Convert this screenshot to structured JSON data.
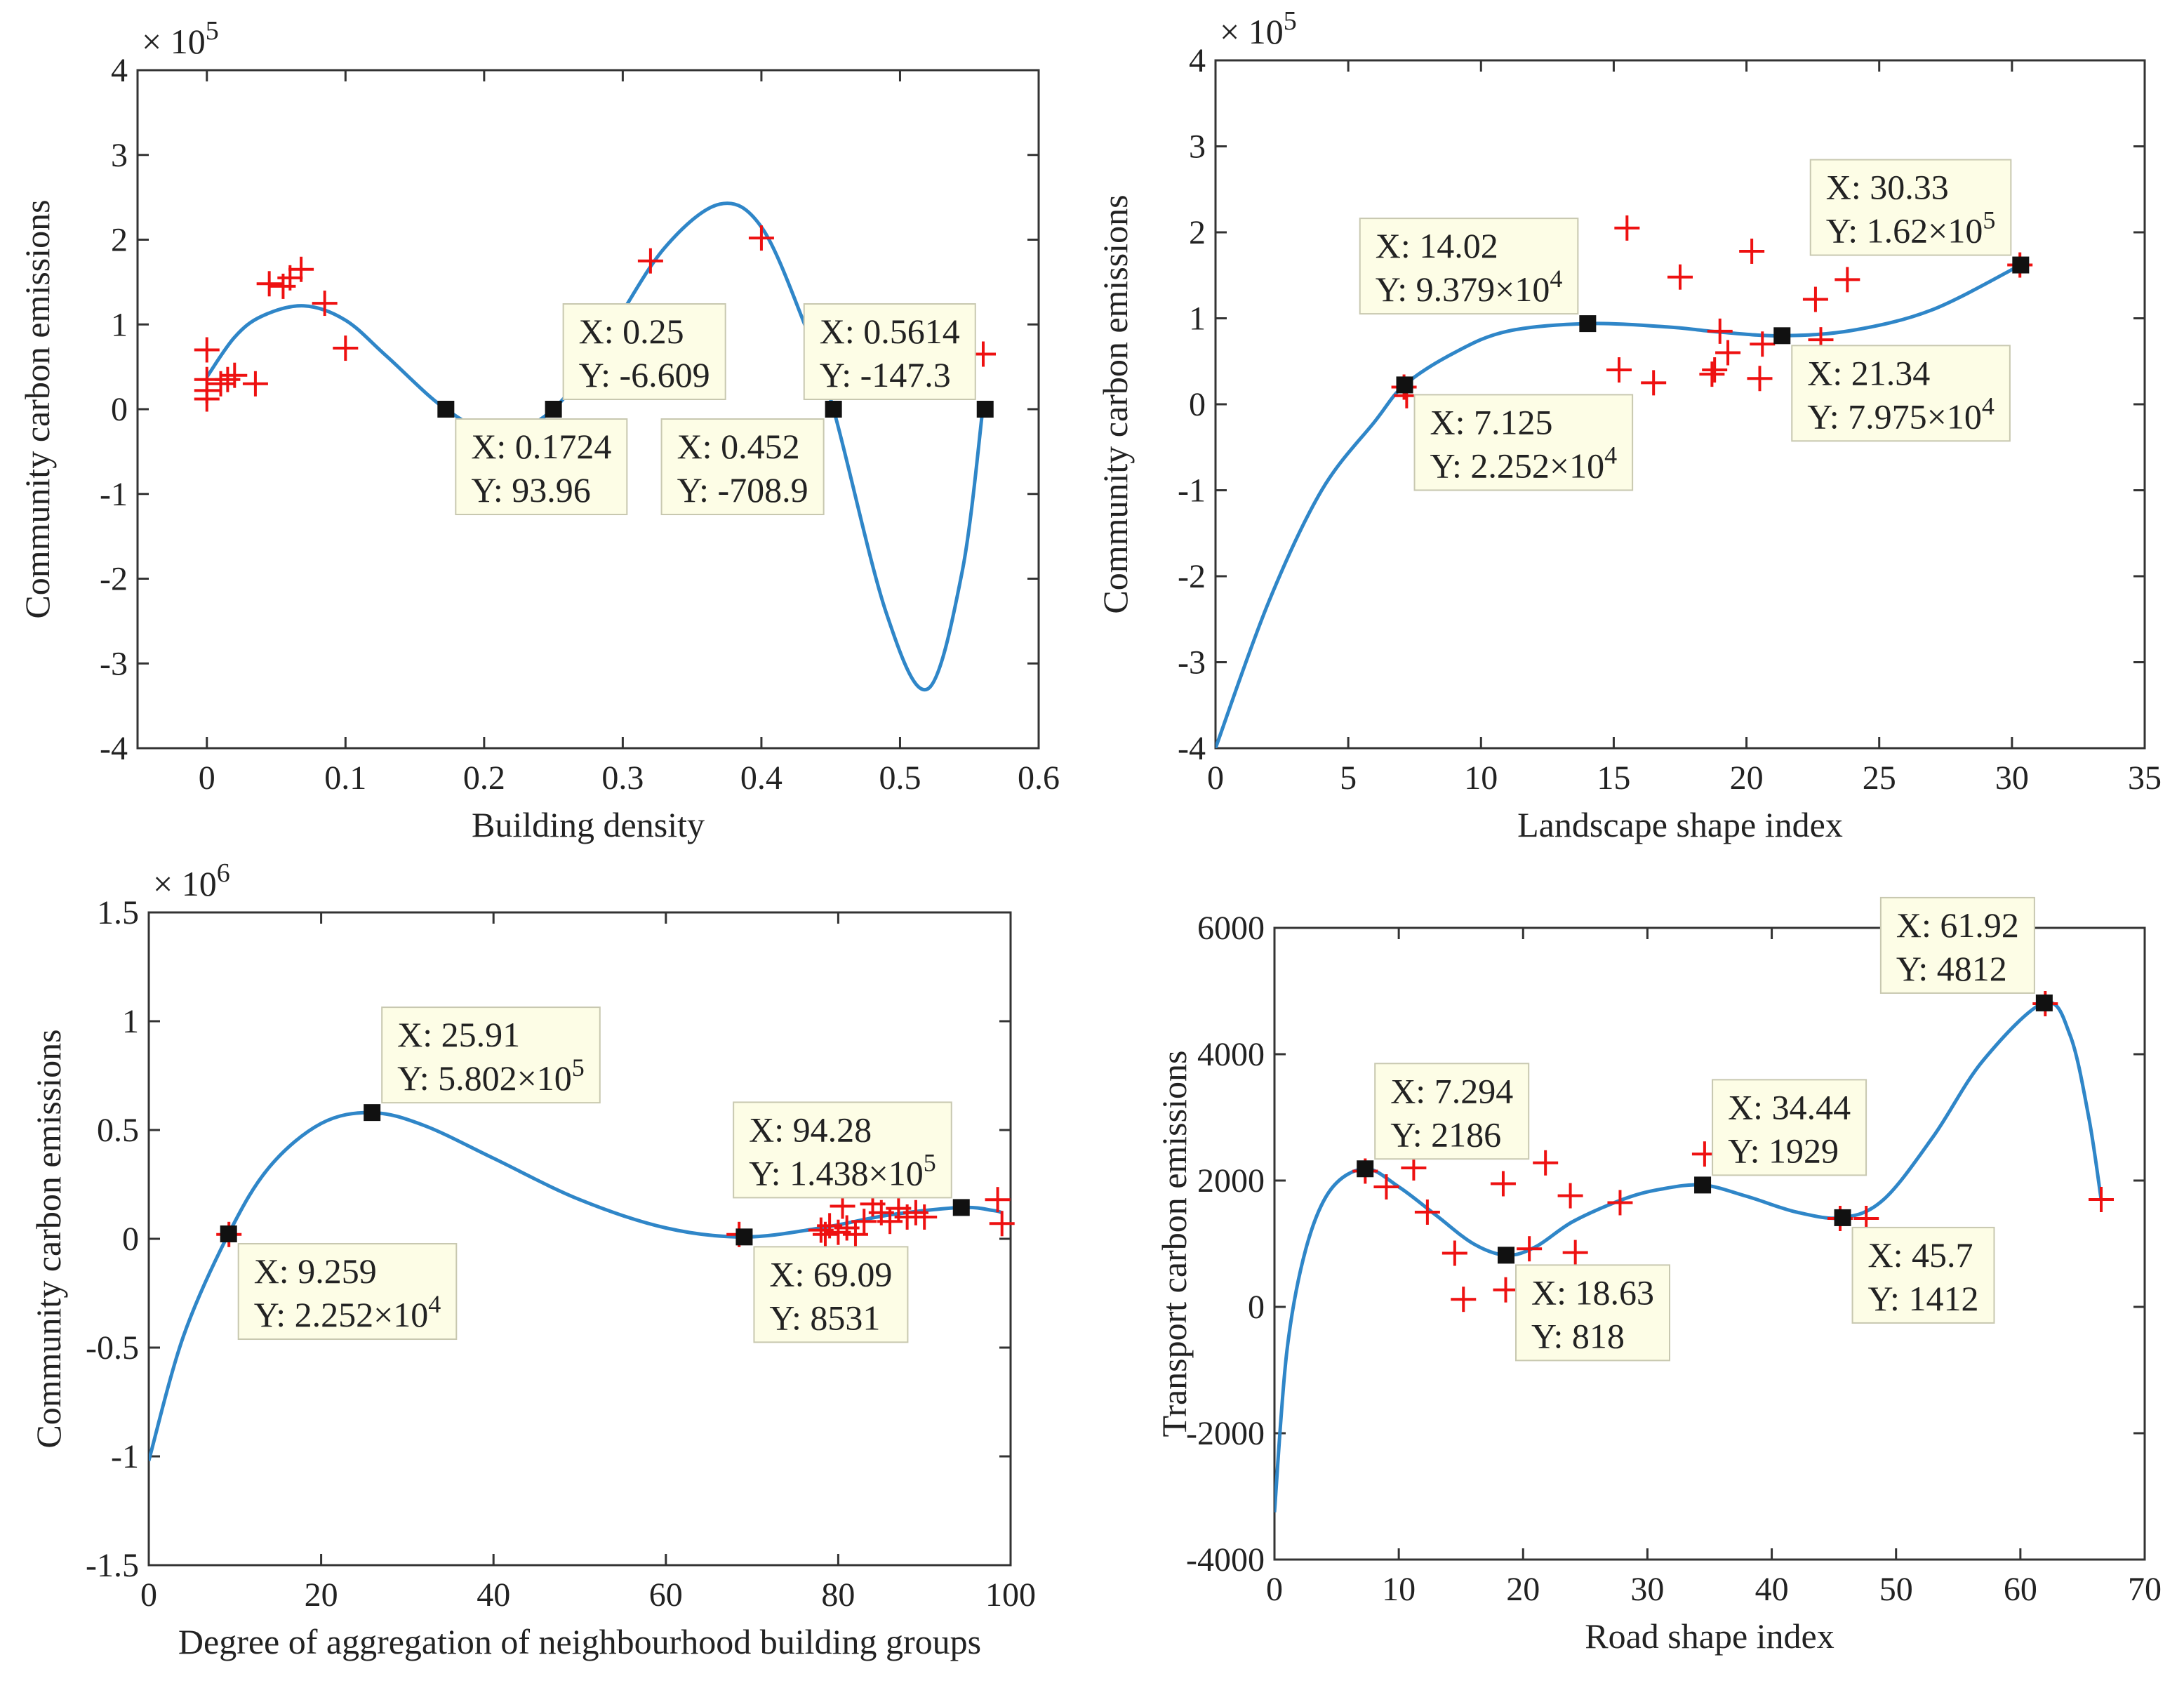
{
  "chart_data": [
    {
      "type": "line",
      "id": "p1",
      "xlabel": "Building density",
      "ylabel": "Community carbon emissions",
      "multiplier_base": "× 10",
      "multiplier_exp": "5",
      "xlim": [
        -0.05,
        0.6
      ],
      "ylim": [
        -4,
        4
      ],
      "xticks": [
        0,
        0.1,
        0.2,
        0.3,
        0.4,
        0.5,
        0.6
      ],
      "xtick_labels": [
        "0",
        "0.1",
        "0.2",
        "0.3",
        "0.4",
        "0.5",
        "0.6"
      ],
      "yticks": [
        -4,
        -3,
        -2,
        -1,
        0,
        1,
        2,
        3,
        4
      ],
      "ytick_labels": [
        "-4",
        "-3",
        "-2",
        "-1",
        "0",
        "1",
        "2",
        "3",
        "4"
      ],
      "curve": [
        [
          0,
          0.38
        ],
        [
          0.02,
          0.85
        ],
        [
          0.04,
          1.1
        ],
        [
          0.07,
          1.22
        ],
        [
          0.1,
          1.05
        ],
        [
          0.13,
          0.62
        ],
        [
          0.1724,
          0
        ],
        [
          0.21,
          -0.28
        ],
        [
          0.25,
          0
        ],
        [
          0.29,
          0.9
        ],
        [
          0.33,
          1.9
        ],
        [
          0.37,
          2.42
        ],
        [
          0.4,
          2.15
        ],
        [
          0.43,
          1.05
        ],
        [
          0.452,
          0
        ],
        [
          0.49,
          -2.4
        ],
        [
          0.52,
          -3.3
        ],
        [
          0.545,
          -1.9
        ],
        [
          0.56,
          0.05
        ]
      ],
      "scatter": [
        [
          0,
          0.7
        ],
        [
          0,
          0.35
        ],
        [
          0,
          0.22
        ],
        [
          0,
          0.12
        ],
        [
          0.01,
          0.3
        ],
        [
          0.015,
          0.35
        ],
        [
          0.02,
          0.4
        ],
        [
          0.035,
          0.3
        ],
        [
          0.045,
          1.48
        ],
        [
          0.055,
          1.45
        ],
        [
          0.06,
          1.55
        ],
        [
          0.068,
          1.65
        ],
        [
          0.085,
          1.25
        ],
        [
          0.1,
          0.72
        ],
        [
          0.32,
          1.75
        ],
        [
          0.4,
          2.02
        ],
        [
          0.56,
          0.65
        ]
      ],
      "markers": [
        {
          "x": 0.1724,
          "y": 0,
          "text1": "X: 0.1724",
          "text2": "Y: 93.96",
          "side": "bottom-right"
        },
        {
          "x": 0.25,
          "y": 0,
          "text1": "X: 0.25",
          "text2": "Y: -6.609",
          "side": "top-right"
        },
        {
          "x": 0.452,
          "y": 0,
          "text1": "X: 0.452",
          "text2": "Y: -708.9",
          "side": "bottom-left"
        },
        {
          "x": 0.5614,
          "y": 0,
          "text1": "X: 0.5614",
          "text2": "Y: -147.3",
          "side": "top-left"
        }
      ]
    },
    {
      "type": "line",
      "id": "p2",
      "xlabel": "Landscape shape index",
      "ylabel": "Community carbon emissions",
      "multiplier_base": "× 10",
      "multiplier_exp": "5",
      "xlim": [
        0,
        35
      ],
      "ylim": [
        -4,
        4
      ],
      "xticks": [
        0,
        5,
        10,
        15,
        20,
        25,
        30,
        35
      ],
      "xtick_labels": [
        "0",
        "5",
        "10",
        "15",
        "20",
        "25",
        "30",
        "35"
      ],
      "yticks": [
        -4,
        -3,
        -2,
        -1,
        0,
        1,
        2,
        3,
        4
      ],
      "ytick_labels": [
        "-4",
        "-3",
        "-2",
        "-1",
        "0",
        "1",
        "2",
        "3",
        "4"
      ],
      "curve": [
        [
          0,
          -4
        ],
        [
          2,
          -2.3
        ],
        [
          4,
          -1.0
        ],
        [
          6,
          -0.2
        ],
        [
          7.125,
          0.225
        ],
        [
          9,
          0.6
        ],
        [
          11,
          0.85
        ],
        [
          14.02,
          0.938
        ],
        [
          17,
          0.9
        ],
        [
          19,
          0.84
        ],
        [
          21.34,
          0.7975
        ],
        [
          24,
          0.86
        ],
        [
          27,
          1.1
        ],
        [
          30.33,
          1.62
        ]
      ],
      "scatter": [
        [
          7.1,
          0.2
        ],
        [
          7.2,
          0.1
        ],
        [
          15.2,
          0.4
        ],
        [
          15.5,
          2.05
        ],
        [
          16.5,
          0.25
        ],
        [
          17.5,
          1.48
        ],
        [
          18.7,
          0.35
        ],
        [
          18.8,
          0.4
        ],
        [
          19.0,
          0.85
        ],
        [
          19.3,
          0.6
        ],
        [
          20.2,
          1.78
        ],
        [
          20.5,
          0.3
        ],
        [
          20.6,
          0.7
        ],
        [
          22.6,
          1.22
        ],
        [
          22.8,
          0.75
        ],
        [
          23.8,
          1.45
        ],
        [
          30.3,
          1.62
        ]
      ],
      "markers": [
        {
          "x": 14.02,
          "y": 0.9379,
          "text1": "X: 14.02",
          "text2": "Y: 9.379×10",
          "sup": "4",
          "side": "top-left"
        },
        {
          "x": 7.125,
          "y": 0.2252,
          "text1": "X: 7.125",
          "text2": "Y: 2.252×10",
          "sup": "4",
          "side": "bottom-right"
        },
        {
          "x": 30.33,
          "y": 1.62,
          "text1": "X: 30.33",
          "text2": "Y: 1.62×10",
          "sup": "5",
          "side": "top-left"
        },
        {
          "x": 21.34,
          "y": 0.7975,
          "text1": "X: 21.34",
          "text2": "Y: 7.975×10",
          "sup": "4",
          "side": "bottom-right"
        }
      ]
    },
    {
      "type": "line",
      "id": "p3",
      "xlabel": "Degree of aggregation of neighbourhood building groups",
      "ylabel": "Community carbon emissions",
      "multiplier_base": "× 10",
      "multiplier_exp": "6",
      "xlim": [
        0,
        100
      ],
      "ylim": [
        -1.5,
        1.5
      ],
      "xticks": [
        0,
        20,
        40,
        60,
        80,
        100
      ],
      "xtick_labels": [
        "0",
        "20",
        "40",
        "60",
        "80",
        "100"
      ],
      "yticks": [
        -1.5,
        -1,
        -0.5,
        0,
        0.5,
        1,
        1.5
      ],
      "ytick_labels": [
        "-1.5",
        "-1",
        "-0.5",
        "0",
        "0.5",
        "1",
        "1.5"
      ],
      "curve": [
        [
          0,
          -1.02
        ],
        [
          4,
          -0.45
        ],
        [
          9.259,
          0.0225
        ],
        [
          14,
          0.33
        ],
        [
          20,
          0.53
        ],
        [
          25.91,
          0.58
        ],
        [
          32,
          0.52
        ],
        [
          40,
          0.37
        ],
        [
          50,
          0.18
        ],
        [
          60,
          0.05
        ],
        [
          69.09,
          0.0085
        ],
        [
          78,
          0.05
        ],
        [
          86,
          0.11
        ],
        [
          94.28,
          0.1438
        ],
        [
          98,
          0.13
        ],
        [
          99,
          0.12
        ]
      ],
      "scatter": [
        [
          9.3,
          0.02
        ],
        [
          68.5,
          0.02
        ],
        [
          78,
          0.04
        ],
        [
          78.5,
          0.02
        ],
        [
          79,
          0.06
        ],
        [
          80,
          0.03
        ],
        [
          80.5,
          0.15
        ],
        [
          81,
          0.05
        ],
        [
          82,
          0.02
        ],
        [
          83,
          0.08
        ],
        [
          84,
          0.16
        ],
        [
          85,
          0.12
        ],
        [
          86,
          0.08
        ],
        [
          87,
          0.14
        ],
        [
          88,
          0.1
        ],
        [
          89,
          0.12
        ],
        [
          90,
          0.1
        ],
        [
          98.5,
          0.18
        ],
        [
          99,
          0.07
        ]
      ],
      "markers": [
        {
          "x": 25.91,
          "y": 0.5802,
          "text1": "X: 25.91",
          "text2": "Y: 5.802×10",
          "sup": "5",
          "side": "top-right"
        },
        {
          "x": 9.259,
          "y": 0.02252,
          "text1": "X: 9.259",
          "text2": "Y: 2.252×10",
          "sup": "4",
          "side": "bottom-right"
        },
        {
          "x": 94.28,
          "y": 0.1438,
          "text1": "X: 94.28",
          "text2": "Y: 1.438×10",
          "sup": "5",
          "side": "top-left"
        },
        {
          "x": 69.09,
          "y": 0.008531,
          "text1": "X: 69.09",
          "text2": "Y: 8531",
          "side": "bottom-right"
        }
      ]
    },
    {
      "type": "line",
      "id": "p4",
      "xlabel": "Road shape index",
      "ylabel": "Transport carbon emissions",
      "multiplier_base": "",
      "multiplier_exp": "",
      "xlim": [
        0,
        70
      ],
      "ylim": [
        -4000,
        6000
      ],
      "xticks": [
        0,
        10,
        20,
        30,
        40,
        50,
        60,
        70
      ],
      "xtick_labels": [
        "0",
        "10",
        "20",
        "30",
        "40",
        "50",
        "60",
        "70"
      ],
      "yticks": [
        -4000,
        -2000,
        0,
        2000,
        4000,
        6000
      ],
      "ytick_labels": [
        "-4000",
        "-2000",
        "0",
        "2000",
        "4000",
        "6000"
      ],
      "curve": [
        [
          0,
          -3250
        ],
        [
          1,
          -700
        ],
        [
          2.5,
          900
        ],
        [
          4.5,
          1850
        ],
        [
          7.294,
          2186
        ],
        [
          10,
          1900
        ],
        [
          13,
          1450
        ],
        [
          16,
          1000
        ],
        [
          18.63,
          818
        ],
        [
          21,
          950
        ],
        [
          24,
          1350
        ],
        [
          28,
          1700
        ],
        [
          31,
          1860
        ],
        [
          34.44,
          1929
        ],
        [
          38,
          1750
        ],
        [
          42,
          1500
        ],
        [
          45.7,
          1412
        ],
        [
          49,
          1700
        ],
        [
          53,
          2700
        ],
        [
          57,
          3900
        ],
        [
          61.92,
          4812
        ],
        [
          64,
          4300
        ],
        [
          65.5,
          3000
        ],
        [
          66.5,
          1700
        ]
      ],
      "scatter": [
        [
          7.3,
          2150
        ],
        [
          9,
          1900
        ],
        [
          11.2,
          2200
        ],
        [
          12.3,
          1500
        ],
        [
          14.5,
          850
        ],
        [
          15.2,
          120
        ],
        [
          18.4,
          1950
        ],
        [
          18.6,
          270
        ],
        [
          20.5,
          920
        ],
        [
          21.8,
          2280
        ],
        [
          23.8,
          1760
        ],
        [
          24.2,
          860
        ],
        [
          27.8,
          1650
        ],
        [
          34.6,
          2420
        ],
        [
          45.5,
          1400
        ],
        [
          47.6,
          1400
        ],
        [
          62,
          4800
        ],
        [
          66.5,
          1700
        ]
      ],
      "markers": [
        {
          "x": 7.294,
          "y": 2186,
          "text1": "X: 7.294",
          "text2": "Y: 2186",
          "side": "top-right"
        },
        {
          "x": 18.63,
          "y": 818,
          "text1": "X: 18.63",
          "text2": "Y: 818",
          "side": "bottom-right"
        },
        {
          "x": 34.44,
          "y": 1929,
          "text1": "X: 34.44",
          "text2": "Y: 1929",
          "side": "top-right"
        },
        {
          "x": 45.7,
          "y": 1412,
          "text1": "X: 45.7",
          "text2": "Y: 1412",
          "side": "bottom-right"
        },
        {
          "x": 61.92,
          "y": 4812,
          "text1": "X: 61.92",
          "text2": "Y: 4812",
          "side": "top-left"
        }
      ]
    }
  ],
  "colors": {
    "curve": "#2f86c8",
    "scatter": "#ee1111",
    "marker": "#111111",
    "tip_fill": "#fdfde6",
    "tip_stroke": "#c8c8b0",
    "axis": "#333333"
  }
}
